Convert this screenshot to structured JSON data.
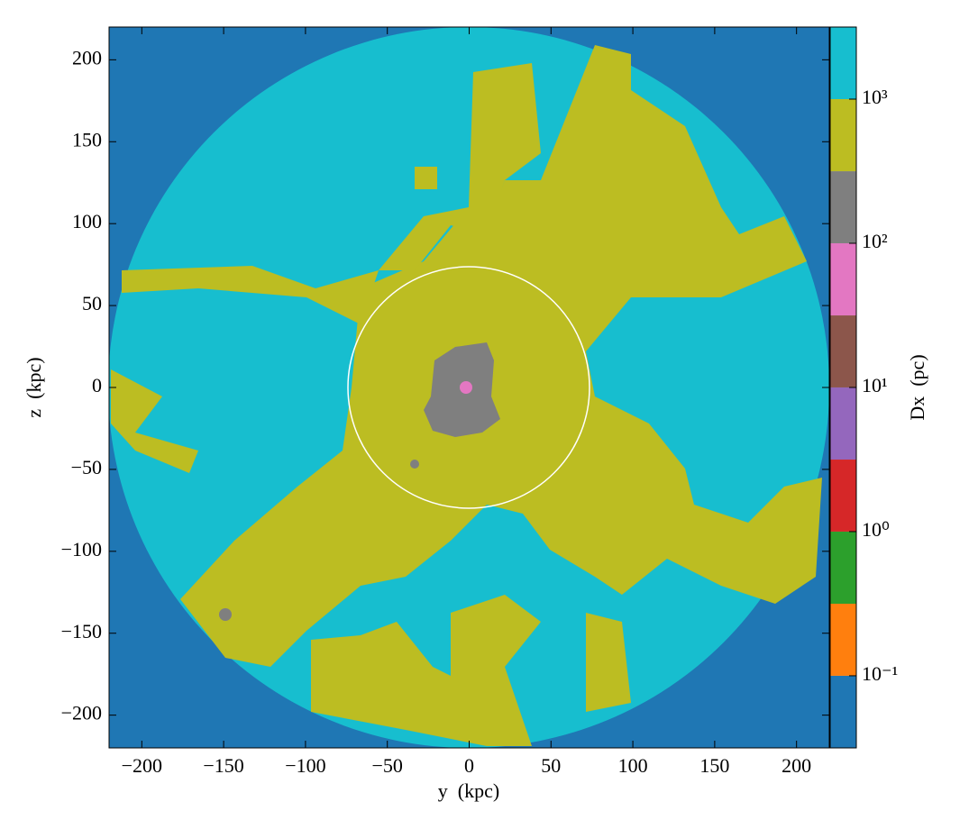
{
  "chart_data": {
    "type": "image",
    "xlabel": "y  (kpc)",
    "ylabel": "z  (kpc)",
    "xlim": [
      -220,
      220
    ],
    "ylim": [
      -220,
      220
    ],
    "xticks": [
      {
        "value": -200,
        "label": "−200"
      },
      {
        "value": -150,
        "label": "−150"
      },
      {
        "value": -100,
        "label": "−100"
      },
      {
        "value": -50,
        "label": "−50"
      },
      0,
      50,
      100,
      150,
      200
    ],
    "yticks": [
      {
        "value": -200,
        "label": "−200"
      },
      {
        "value": -150,
        "label": "−150"
      },
      {
        "value": -100,
        "label": "−100"
      },
      {
        "value": -50,
        "label": "−50"
      },
      0,
      50,
      100,
      150,
      200
    ],
    "colorbar": {
      "label": "Dx  (pc)",
      "log": true,
      "lim": [
        0.0316,
        3162
      ],
      "levels": [
        0.0316,
        0.1,
        0.316,
        1,
        3.16,
        10,
        31.6,
        100,
        316,
        1000,
        3162
      ],
      "colors": [
        "#1f77b4",
        "#ff7f0e",
        "#2ca02c",
        "#d62728",
        "#9467bd",
        "#8c564b",
        "#e377c2",
        "#7f7f7f",
        "#bcbd22",
        "#17becf"
      ],
      "ticks": [
        {
          "value": 0.1,
          "label": "10⁻¹"
        },
        {
          "value": 1,
          "label": "10⁰"
        },
        {
          "value": 10,
          "label": "10¹"
        },
        {
          "value": 100,
          "label": "10²"
        },
        {
          "value": 1000,
          "label": "10³"
        }
      ]
    }
  }
}
